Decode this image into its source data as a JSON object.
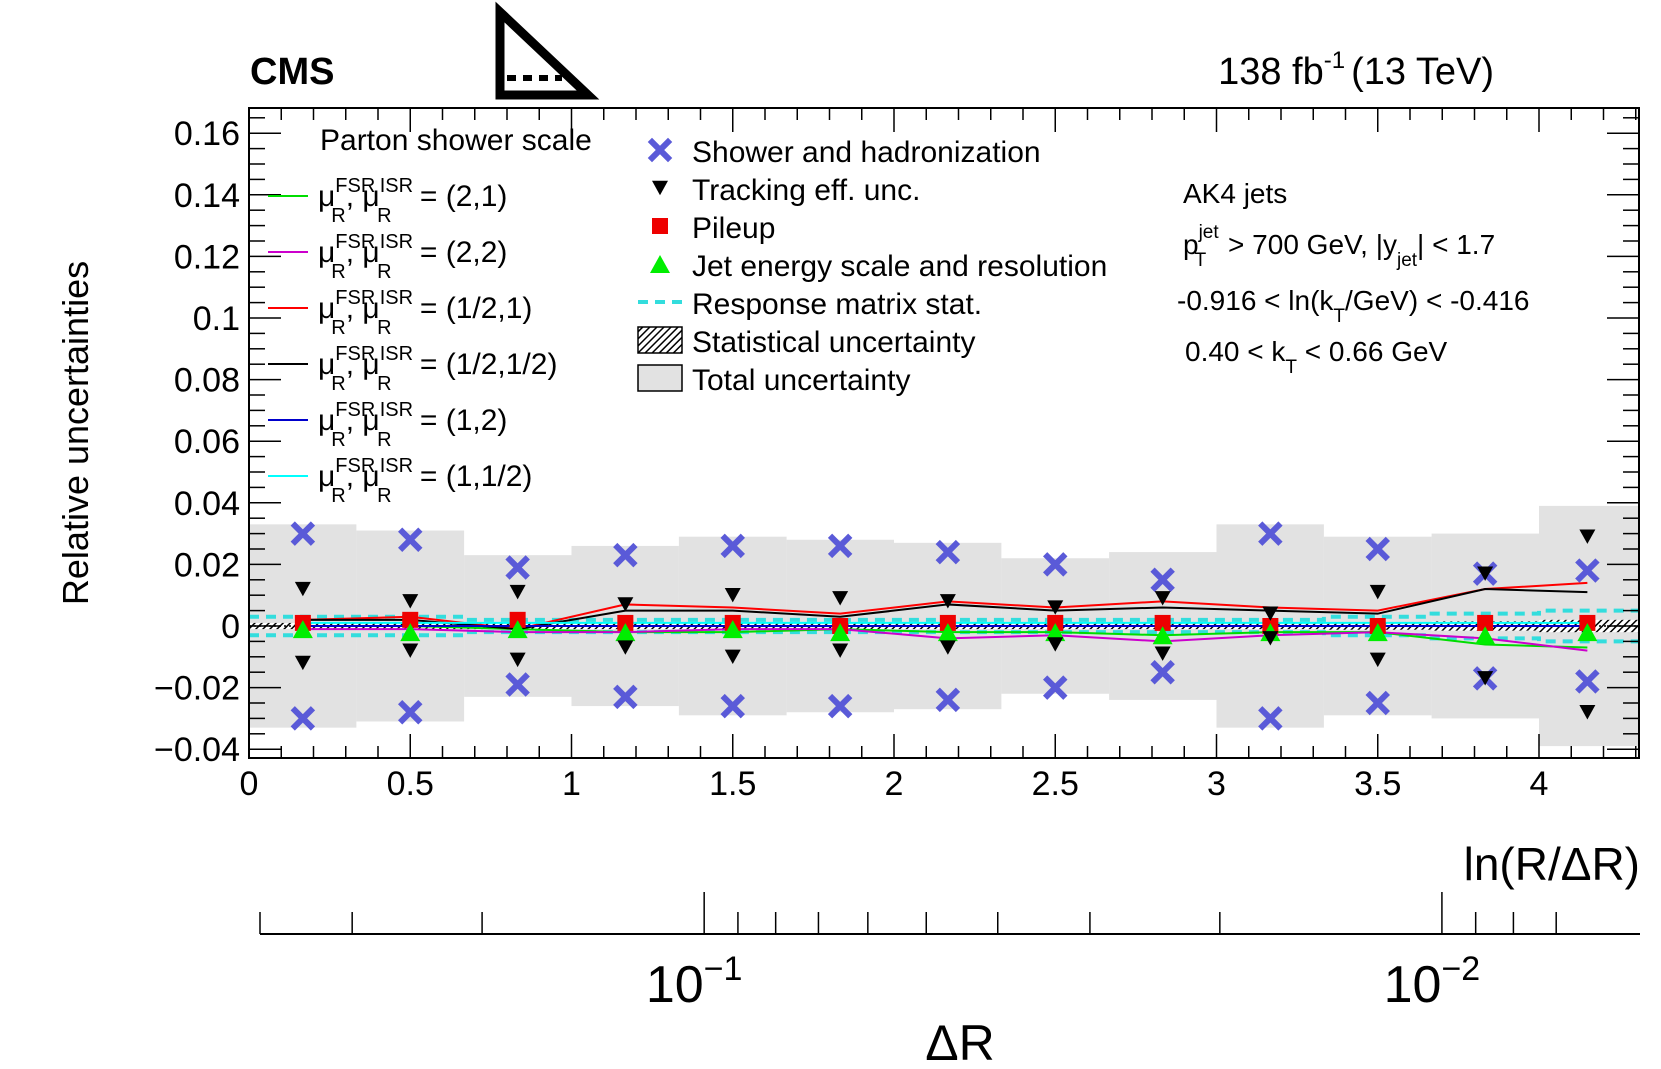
{
  "chart_data": {
    "type": "scatter",
    "header": {
      "experiment": "CMS",
      "luminosity_prefix": "138 fb",
      "luminosity_exponent": "-1",
      "energy": "(13 TeV)"
    },
    "ylabel": "Relative uncertainties",
    "xlabel": "ln(R/ΔR)",
    "x2label": "ΔR",
    "xlim": [
      0,
      4.3
    ],
    "ylim": [
      -0.04,
      0.165
    ],
    "x_ticks": [
      {
        "v": 0,
        "label": "0"
      },
      {
        "v": 0.5,
        "label": "0.5"
      },
      {
        "v": 1,
        "label": "1"
      },
      {
        "v": 1.5,
        "label": "1.5"
      },
      {
        "v": 2,
        "label": "2"
      },
      {
        "v": 2.5,
        "label": "2.5"
      },
      {
        "v": 3,
        "label": "3"
      },
      {
        "v": 3.5,
        "label": "3.5"
      },
      {
        "v": 4,
        "label": "4"
      }
    ],
    "y_ticks": [
      {
        "v": -0.04,
        "label": "−0.04"
      },
      {
        "v": -0.02,
        "label": "−0.02"
      },
      {
        "v": 0,
        "label": "0"
      },
      {
        "v": 0.02,
        "label": "0.02"
      },
      {
        "v": 0.04,
        "label": "0.04"
      },
      {
        "v": 0.06,
        "label": "0.06"
      },
      {
        "v": 0.08,
        "label": "0.08"
      },
      {
        "v": 0.1,
        "label": "0.1"
      },
      {
        "v": 0.12,
        "label": "0.12"
      },
      {
        "v": 0.14,
        "label": "0.14"
      },
      {
        "v": 0.16,
        "label": "0.16"
      }
    ],
    "secondary_axis": {
      "major": [
        {
          "dr": 0.1,
          "base": "10",
          "exp": "−1"
        },
        {
          "dr": 0.01,
          "base": "10",
          "exp": "−2"
        }
      ]
    },
    "bin_edges": [
      0,
      0.333,
      0.667,
      1.0,
      1.333,
      1.667,
      2.0,
      2.333,
      2.667,
      3.0,
      3.333,
      3.667,
      4.0,
      4.333
    ],
    "bin_centers": [
      0.167,
      0.5,
      0.833,
      1.167,
      1.5,
      1.833,
      2.167,
      2.5,
      2.833,
      3.167,
      3.5,
      3.833,
      4.15
    ],
    "total_uncertainty": [
      0.033,
      0.031,
      0.023,
      0.026,
      0.029,
      0.028,
      0.027,
      0.022,
      0.024,
      0.033,
      0.029,
      0.03,
      0.039
    ],
    "statistical_uncertainty": [
      0.001,
      0.001,
      0.001,
      0.001,
      0.001,
      0.001,
      0.001,
      0.001,
      0.001,
      0.001,
      0.0012,
      0.0015,
      0.002
    ],
    "response_matrix_stat": [
      0.003,
      0.003,
      0.002,
      0.002,
      0.002,
      0.002,
      0.002,
      0.002,
      0.002,
      0.002,
      0.003,
      0.004,
      0.005
    ],
    "shower_hadronization": {
      "up": [
        0.03,
        0.028,
        0.019,
        0.023,
        0.026,
        0.026,
        0.024,
        0.02,
        0.015,
        0.03,
        0.025,
        0.017,
        0.018
      ],
      "down": [
        -0.03,
        -0.028,
        -0.019,
        -0.023,
        -0.026,
        -0.026,
        -0.024,
        -0.02,
        -0.015,
        -0.03,
        -0.025,
        -0.017,
        -0.018
      ]
    },
    "tracking_eff": {
      "up": [
        0.012,
        0.008,
        0.011,
        0.007,
        0.01,
        0.009,
        0.008,
        0.006,
        0.009,
        0.004,
        0.011,
        0.017,
        0.029
      ],
      "down": [
        -0.012,
        -0.008,
        -0.011,
        -0.007,
        -0.01,
        -0.008,
        -0.007,
        -0.006,
        -0.009,
        -0.004,
        -0.011,
        -0.017,
        -0.028
      ]
    },
    "pileup": [
      0.001,
      0.002,
      0.002,
      0.001,
      0.001,
      0.0,
      0.001,
      0.001,
      0.001,
      0.0,
      0.0,
      0.001,
      0.001
    ],
    "jes_jer": [
      -0.001,
      -0.002,
      -0.001,
      -0.002,
      -0.001,
      -0.002,
      -0.002,
      -0.002,
      -0.003,
      -0.002,
      -0.002,
      -0.003,
      -0.002
    ],
    "series": [
      {
        "name": "(2,1)",
        "color": "#00dd00",
        "values": [
          0.0,
          0.0,
          -0.001,
          -0.002,
          -0.002,
          -0.001,
          -0.002,
          -0.002,
          -0.003,
          -0.002,
          -0.002,
          -0.006,
          -0.007
        ]
      },
      {
        "name": "(2,2)",
        "color": "#cc00cc",
        "values": [
          -0.001,
          -0.001,
          -0.002,
          -0.002,
          -0.001,
          -0.001,
          -0.004,
          -0.003,
          -0.005,
          -0.003,
          -0.002,
          -0.004,
          -0.008
        ]
      },
      {
        "name": "(1/2,1)",
        "color": "#ff0000",
        "values": [
          0.002,
          0.003,
          -0.001,
          0.007,
          0.006,
          0.004,
          0.008,
          0.006,
          0.008,
          0.006,
          0.005,
          0.012,
          0.014
        ]
      },
      {
        "name": "(1/2,1/2)",
        "color": "#000000",
        "values": [
          0.002,
          0.002,
          -0.001,
          0.005,
          0.005,
          0.003,
          0.007,
          0.005,
          0.006,
          0.005,
          0.004,
          0.012,
          0.011
        ]
      },
      {
        "name": "(1,2)",
        "color": "#0000cc",
        "values": [
          0.0,
          0.0,
          0.0,
          0.0,
          0.0,
          0.0,
          0.0,
          0.0,
          0.0,
          0.0,
          0.0,
          0.0,
          0.0
        ]
      },
      {
        "name": "(1,1/2)",
        "color": "#00ffff",
        "values": [
          0.001,
          0.001,
          0.001,
          0.001,
          0.001,
          0.001,
          0.001,
          0.001,
          0.001,
          0.001,
          0.001,
          0.001,
          0.001
        ]
      }
    ],
    "legend_left_title": "Parton shower scale",
    "legend_right": [
      {
        "key": "shower",
        "label": "Shower and hadronization"
      },
      {
        "key": "tracking",
        "label": "Tracking eff. unc."
      },
      {
        "key": "pileup",
        "label": "Pileup"
      },
      {
        "key": "jes",
        "label": "Jet energy scale and resolution"
      },
      {
        "key": "resp",
        "label": "Response matrix stat."
      },
      {
        "key": "stat",
        "label": "Statistical uncertainty"
      },
      {
        "key": "total",
        "label": "Total uncertainty"
      }
    ],
    "info": {
      "jets": "AK4 jets",
      "cut1_a": "p",
      "cut1_sup": "jet",
      "cut1_sub": "T",
      "cut1_b": " > 700 GeV, |y",
      "cut1_sub2": "jet",
      "cut1_c": "| < 1.7",
      "cut2_a": "-0.916 < ln(k",
      "cut2_sub": "T",
      "cut2_b": "/GeV) < -0.416",
      "cut3_a": "0.40 < k",
      "cut3_sub": "T",
      "cut3_b": " < 0.66 GeV"
    },
    "colors": {
      "shower": "#5a5ad8",
      "pileup": "#ee0000",
      "jes": "#00ee00",
      "resp": "#33dddd",
      "total": "#e2e2e2"
    }
  }
}
